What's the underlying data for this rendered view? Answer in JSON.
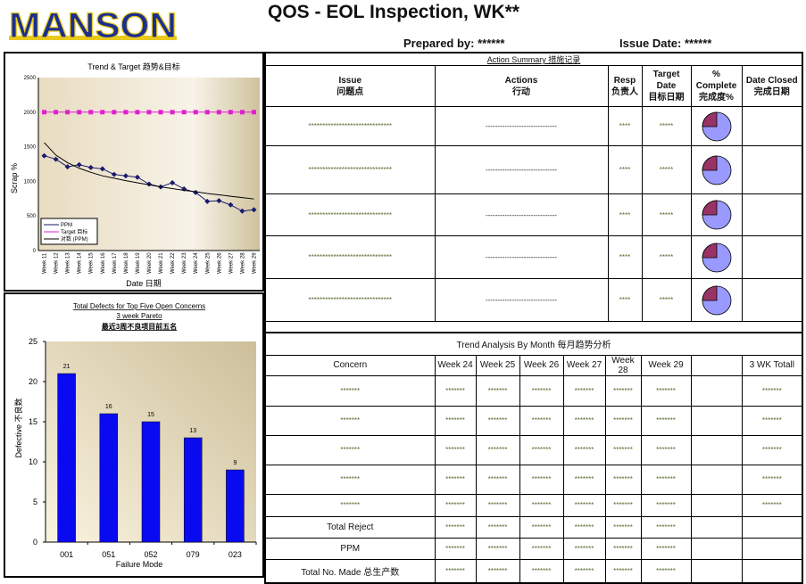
{
  "header": {
    "logo": "MANSON",
    "title": "QOS - EOL Inspection, WK**",
    "prepared_by": "Prepared by: ******",
    "issue_date": "Issue Date: ******"
  },
  "colors": {
    "logo": "#1b2f8f",
    "logo_accent": "#e9c91a",
    "ppm": "#1a1a6e",
    "target": "#e020d0",
    "bar": "#0a0af0",
    "pie_done": "#993366",
    "pie_rest": "#9999ff"
  },
  "chart_data": [
    {
      "type": "line",
      "title": "Trend & Target 趋势&目标",
      "xlabel": "Date 日期",
      "ylabel": "Scrap %",
      "ylim": [
        0,
        2500
      ],
      "yticks": [
        0,
        500,
        1000,
        1500,
        2000,
        2500
      ],
      "categories": [
        "Week 11",
        "Week 12",
        "Week 13",
        "Week 14",
        "Week 15",
        "Week 16",
        "Week 17",
        "Week 18",
        "Week 19",
        "Week 20",
        "Week 21",
        "Week 22",
        "Week 23",
        "Week 24",
        "Week 25",
        "Week 26",
        "Week 27",
        "Week 28",
        "Week 29"
      ],
      "series": [
        {
          "name": "PPM",
          "values": [
            1370,
            1320,
            1210,
            1240,
            1200,
            1180,
            1100,
            1080,
            1060,
            960,
            920,
            980,
            890,
            840,
            710,
            720,
            660,
            570,
            590
          ]
        },
        {
          "name": "Target 目标",
          "values": [
            2000,
            2000,
            2000,
            2000,
            2000,
            2000,
            2000,
            2000,
            2000,
            2000,
            2000,
            2000,
            2000,
            2000,
            2000,
            2000,
            2000,
            2000,
            2000
          ]
        },
        {
          "name": "对数 (PPM)",
          "values": [
            1560,
            1380,
            1270,
            1190,
            1130,
            1080,
            1045,
            1010,
            980,
            950,
            920,
            895,
            870,
            850,
            825,
            805,
            785,
            765,
            745
          ]
        }
      ],
      "legend": "bottom-left"
    },
    {
      "type": "bar",
      "title": "Total Defects for Top Five Open Concerns",
      "subtitle": "3 week Pareto",
      "subtitle2": "最近3周不良项目前五名",
      "xlabel": "Failure Mode",
      "ylabel": "Defective 不良数",
      "ylim": [
        0,
        25
      ],
      "yticks": [
        0,
        5,
        10,
        15,
        20,
        25
      ],
      "categories": [
        "001",
        "051",
        "052",
        "079",
        "023"
      ],
      "values": [
        21,
        16,
        15,
        13,
        9
      ]
    }
  ],
  "actions": {
    "title": "Action Summary 措施记录",
    "headers": [
      {
        "l1": "Issue",
        "l2": "问题点"
      },
      {
        "l1": "Actions",
        "l2": "行动"
      },
      {
        "l1": "Resp",
        "l2": "负责人"
      },
      {
        "l1": "Target",
        "l2": "Date",
        "l3": "目标日期"
      },
      {
        "l1": "%",
        "l2": "Complete",
        "l3": "完成度%"
      },
      {
        "l1": "Date Closed",
        "l2": "完成日期"
      }
    ],
    "rows": [
      {
        "issue": "******************************",
        "action": "------------------------------",
        "resp": "****",
        "date": "*****",
        "complete": 0.25,
        "closed": ""
      },
      {
        "issue": "******************************",
        "action": "------------------------------",
        "resp": "****",
        "date": "*****",
        "complete": 0.25,
        "closed": ""
      },
      {
        "issue": "******************************",
        "action": "------------------------------",
        "resp": "****",
        "date": "*****",
        "complete": 0.25,
        "closed": ""
      },
      {
        "issue": "******************************",
        "action": "------------------------------",
        "resp": "****",
        "date": "*****",
        "complete": 0.25,
        "closed": ""
      },
      {
        "issue": "******************************",
        "action": "------------------------------",
        "resp": "****",
        "date": "*****",
        "complete": 0.25,
        "closed": ""
      }
    ]
  },
  "trend": {
    "title": "Trend Analysis By Month 每月趋势分析",
    "headers": [
      "Concern",
      "Week 24",
      "Week 25",
      "Week 26",
      "Week 27",
      "Week 28",
      "Week 29",
      "",
      "3 WK Totall"
    ],
    "rows": [
      [
        "*******",
        "*******",
        "*******",
        "*******",
        "*******",
        "*******",
        "*******",
        "",
        "*******"
      ],
      [
        "*******",
        "*******",
        "*******",
        "*******",
        "*******",
        "*******",
        "*******",
        "",
        "*******"
      ],
      [
        "*******",
        "*******",
        "*******",
        "*******",
        "*******",
        "*******",
        "*******",
        "",
        "*******"
      ],
      [
        "*******",
        "*******",
        "*******",
        "*******",
        "*******",
        "*******",
        "*******",
        "",
        "*******"
      ],
      [
        "*******",
        "*******",
        "*******",
        "*******",
        "*******",
        "*******",
        "*******",
        "",
        "*******"
      ],
      [
        "Total Reject",
        "*******",
        "*******",
        "*******",
        "*******",
        "*******",
        "*******",
        "",
        ""
      ],
      [
        "PPM",
        "*******",
        "*******",
        "*******",
        "*******",
        "*******",
        "*******",
        "",
        ""
      ],
      [
        "Total No. Made  总生产数",
        "*******",
        "*******",
        "*******",
        "*******",
        "*******",
        "*******",
        "",
        ""
      ]
    ]
  }
}
